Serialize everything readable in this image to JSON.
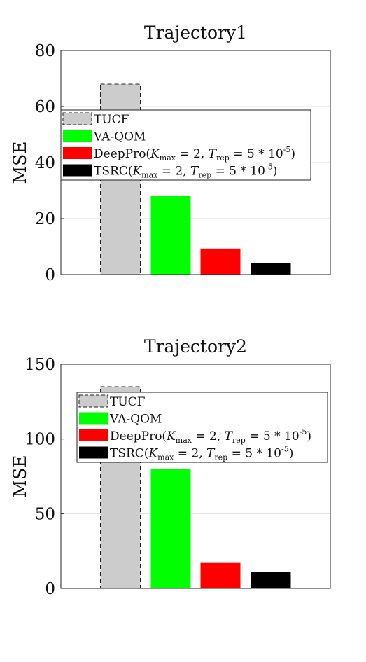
{
  "chart_data": [
    {
      "type": "bar",
      "title": "Trajectory1",
      "xlabel": "",
      "ylabel": "MSE",
      "ylim": [
        0,
        80
      ],
      "yticks": [
        "0",
        "20",
        "40",
        "60",
        "80"
      ],
      "grid": true,
      "legend_position": "upper-left",
      "series": [
        {
          "name": "TUCF",
          "value": 68,
          "color": "#cccccc",
          "dashed": true
        },
        {
          "name": "VA-QOM",
          "value": 28,
          "color": "#00ff00",
          "dashed": false
        },
        {
          "name": "DeepPro(K_max = 2, T_rep = 5 * 10^-5)",
          "value": 9.3,
          "color": "#ff0000",
          "dashed": false
        },
        {
          "name": "TSRC(K_max = 2, T_rep = 5 * 10^-5)",
          "value": 4,
          "color": "#000000",
          "dashed": false
        }
      ]
    },
    {
      "type": "bar",
      "title": "Trajectory2",
      "xlabel": "",
      "ylabel": "MSE",
      "ylim": [
        0,
        150
      ],
      "yticks": [
        "0",
        "50",
        "100",
        "150"
      ],
      "grid": true,
      "legend_position": "upper-left",
      "series": [
        {
          "name": "TUCF",
          "value": 135,
          "color": "#cccccc",
          "dashed": true
        },
        {
          "name": "VA-QOM",
          "value": 80,
          "color": "#00ff00",
          "dashed": false
        },
        {
          "name": "DeepPro(K_max = 2, T_rep = 5 * 10^-5)",
          "value": 17.5,
          "color": "#ff0000",
          "dashed": false
        },
        {
          "name": "TSRC(K_max = 2, T_rep = 5 * 10^-5)",
          "value": 11,
          "color": "#000000",
          "dashed": false
        }
      ]
    }
  ]
}
